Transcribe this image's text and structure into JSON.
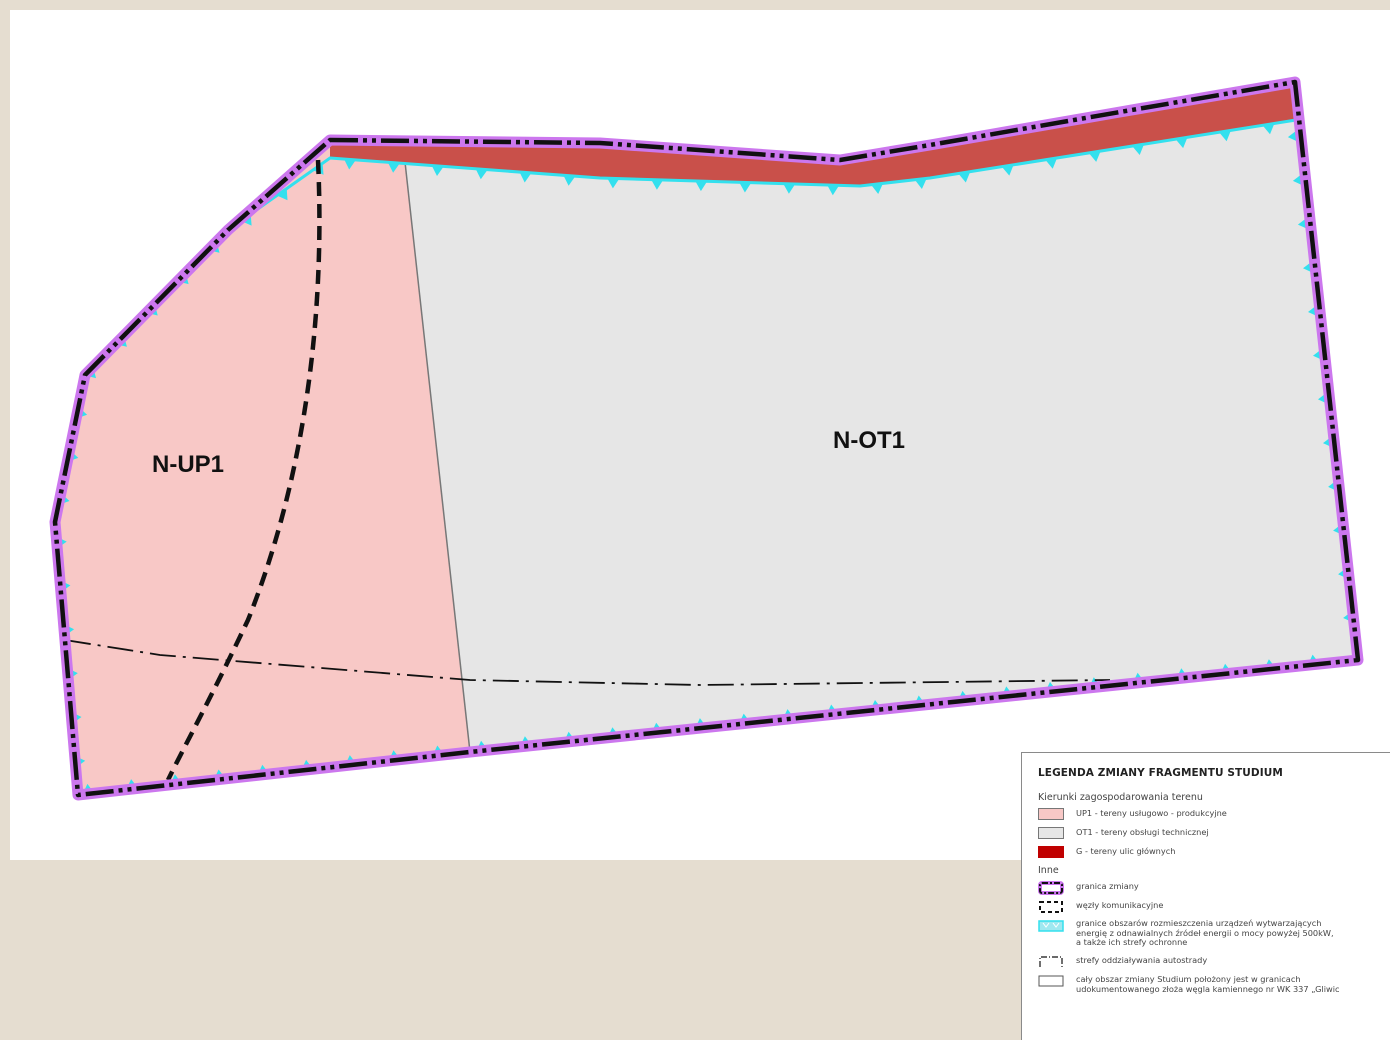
{
  "map": {
    "zones": [
      {
        "id": "N-UP1",
        "label": "N-UP1",
        "color": "#f8c8c6"
      },
      {
        "id": "N-OT1",
        "label": "N-OT1",
        "color": "#e6e6e6"
      }
    ],
    "colors": {
      "background": "#e5ddd0",
      "upzone": "#f8c8c6",
      "otzone": "#e6e6e6",
      "road": "#c9504a",
      "boundary_outer": "#cc77ee",
      "boundary_inner": "#111111",
      "renewable_line": "#33e0ee"
    }
  },
  "legend": {
    "title": "LEGENDA ZMIANY FRAGMENTU STUDIUM",
    "section1": "Kierunki zagospodarowania terenu",
    "items1": [
      {
        "label": "UP1 - tereny usługowo - produkcyjne",
        "color": "#f8c8c6"
      },
      {
        "label": "OT1 - tereny obsługi technicznej",
        "color": "#e6e6e6"
      },
      {
        "label": "G - tereny ulic głównych",
        "color": "#c00000"
      }
    ],
    "section2": "Inne",
    "items2": [
      {
        "label": "granica zmiany",
        "icon": "boundary-symbol-icon"
      },
      {
        "label": "węzły komunikacyjne",
        "icon": "dashed-box-icon"
      },
      {
        "label": "granice obszarów rozmieszczenia urządzeń wytwarzających\nenergię z odnawialnych źródeł energii o mocy powyżej 500kW,\na także ich strefy ochronne",
        "icon": "renewable-zone-icon"
      },
      {
        "label": "strefy oddziaływania autostrady",
        "icon": "dash-dot-box-icon"
      },
      {
        "label": "cały obszar zmiany Studium położony jest w granicach\nudokumentowanego złoża węgla kamiennego nr WK 337 „Gliwic",
        "icon": "empty-box-icon"
      }
    ]
  }
}
